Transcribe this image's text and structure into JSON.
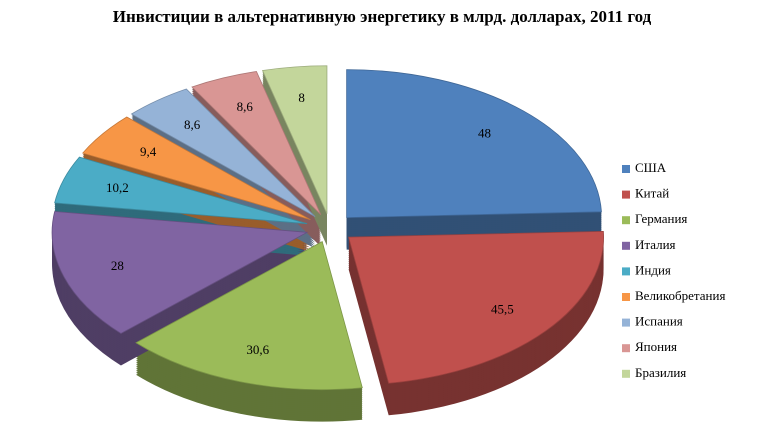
{
  "chart_data": {
    "type": "pie",
    "title": "Инвистиции в альтернативную энергетику в млрд. долларах, 2011 год",
    "categories": [
      "США",
      "Китай",
      "Германия",
      "Италия",
      "Индия",
      "Великобретания",
      "Испания",
      "Япония",
      "Бразилия"
    ],
    "values": [
      48,
      45.5,
      30.6,
      28,
      10.2,
      9.4,
      8.6,
      8.6,
      8
    ],
    "value_labels": [
      "48",
      "45,5",
      "30,6",
      "28",
      "10,2",
      "9,4",
      "8,6",
      "8,6",
      "8"
    ],
    "colors": [
      "#4f81bd",
      "#c0504d",
      "#9bbb59",
      "#8064a2",
      "#4bacc6",
      "#f79646",
      "#95b3d7",
      "#d99694",
      "#c3d69b"
    ],
    "legend": "right"
  }
}
